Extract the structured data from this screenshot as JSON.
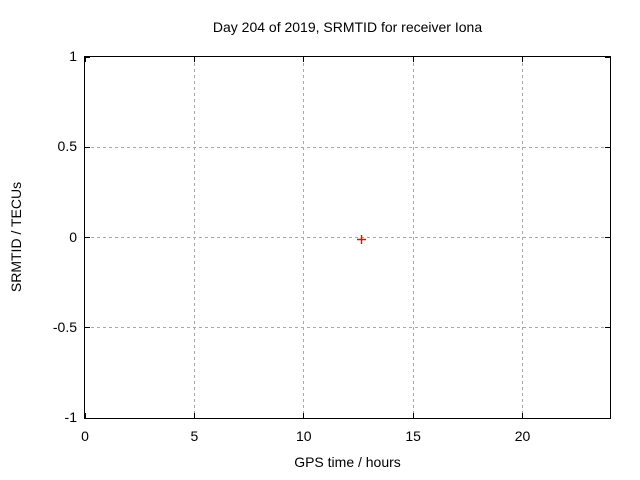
{
  "chart_data": {
    "type": "scatter",
    "title": "Day 204 of 2019, SRMTID for receiver Iona",
    "xlabel": "GPS time / hours",
    "ylabel": "SRMTID / TECUs",
    "xlim": [
      0,
      24
    ],
    "ylim": [
      -1,
      1
    ],
    "xticks": [
      {
        "value": 0,
        "label": "0"
      },
      {
        "value": 5,
        "label": "5"
      },
      {
        "value": 10,
        "label": "10"
      },
      {
        "value": 15,
        "label": "15"
      },
      {
        "value": 20,
        "label": "20"
      }
    ],
    "yticks": [
      {
        "value": 1,
        "label": "1"
      },
      {
        "value": 0.5,
        "label": "0.5"
      },
      {
        "value": 0,
        "label": "0"
      },
      {
        "value": -0.5,
        "label": "-0.5"
      },
      {
        "value": -1,
        "label": "-1"
      }
    ],
    "grid": true,
    "legend": "none",
    "series": [
      {
        "name": "SRMTID",
        "marker": "plus",
        "color": "#ff0000",
        "points": [
          {
            "x": 12.65,
            "y": 0
          }
        ]
      }
    ],
    "colors": {
      "background": "#ffffff",
      "axis": "#000000",
      "grid": "#a8a8a8",
      "text": "#000000"
    }
  }
}
